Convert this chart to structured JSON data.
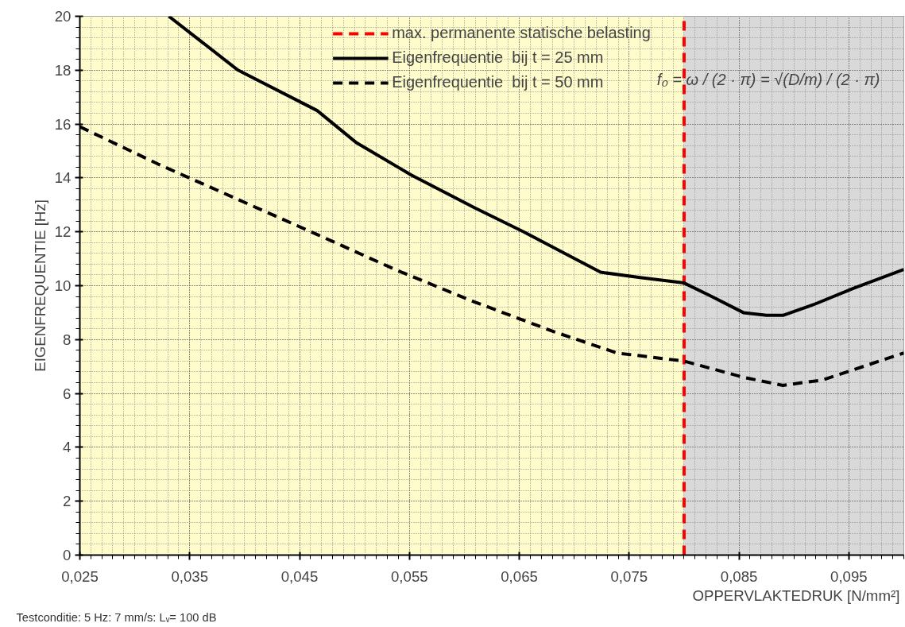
{
  "chart_data": {
    "type": "line",
    "xlabel": "OPPERVLAKTEDRUK  [N/mm²]",
    "ylabel": "EIGENFREQUENTIE [Hz]",
    "xlim": [
      0.025,
      0.1
    ],
    "ylim": [
      0,
      20
    ],
    "xticks": [
      {
        "value": 0.025,
        "label": "0,025"
      },
      {
        "value": 0.035,
        "label": "0,035"
      },
      {
        "value": 0.045,
        "label": "0,045"
      },
      {
        "value": 0.055,
        "label": "0,055"
      },
      {
        "value": 0.065,
        "label": "0,065"
      },
      {
        "value": 0.075,
        "label": "0,075"
      },
      {
        "value": 0.085,
        "label": "0,085"
      },
      {
        "value": 0.095,
        "label": "0,095"
      }
    ],
    "yticks": [
      0,
      2,
      4,
      6,
      8,
      10,
      12,
      14,
      16,
      18,
      20
    ],
    "grid": true,
    "legend": "top",
    "series": [
      {
        "name": "Eigenfrequentie  bij t = 25 mm",
        "color": "#000000",
        "line_style": "solid",
        "x": [
          0.0331,
          0.0394,
          0.0466,
          0.0502,
          0.0552,
          0.0609,
          0.0654,
          0.0696,
          0.0724,
          0.076,
          0.08,
          0.0825,
          0.0854,
          0.0875,
          0.089,
          0.0918,
          0.0954,
          0.1
        ],
        "values": [
          20,
          18.0,
          16.5,
          15.3,
          14.1,
          12.9,
          12.0,
          11.1,
          10.5,
          10.3,
          10.1,
          9.6,
          9.0,
          8.9,
          8.9,
          9.3,
          9.9,
          10.6
        ]
      },
      {
        "name": "Eigenfrequentie  bij t = 50 mm",
        "color": "#000000",
        "line_style": "dashed",
        "x": [
          0.025,
          0.0322,
          0.0394,
          0.0466,
          0.0537,
          0.0609,
          0.0681,
          0.0739,
          0.08,
          0.0854,
          0.089,
          0.0926,
          0.1
        ],
        "values": [
          15.9,
          14.5,
          13.2,
          11.9,
          10.6,
          9.4,
          8.3,
          7.5,
          7.2,
          6.6,
          6.3,
          6.5,
          7.5
        ]
      }
    ],
    "ref_lines": [
      {
        "axis": "x",
        "value": 0.08,
        "label": "max. permanente statische belasting",
        "color": "#ff0000",
        "line_style": "dashed"
      }
    ],
    "bands": [
      {
        "axis": "x",
        "from": 0.025,
        "to": 0.08,
        "color": "#fffccc"
      },
      {
        "axis": "x",
        "from": 0.08,
        "to": 0.1,
        "color": "#d9d9d9"
      }
    ],
    "annotations": [
      "f₀ = ω / (2 · π) = √(D/m) / (2 · π)",
      "Testconditie: 5 Hz: 7 mm/s: Lᵥ= 100 dB"
    ]
  }
}
